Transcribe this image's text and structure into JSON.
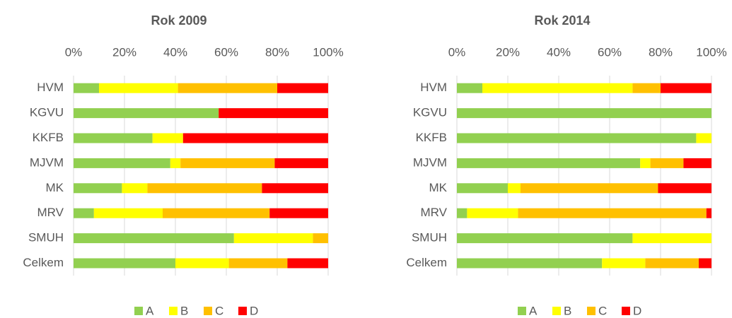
{
  "chart_data": [
    {
      "type": "bar",
      "orientation": "horizontal",
      "stacked": true,
      "title": "Rok 2009",
      "categories": [
        "HVM",
        "KGVU",
        "KKFB",
        "MJVM",
        "MK",
        "MRV",
        "SMUH",
        "Celkem"
      ],
      "series": [
        {
          "name": "A",
          "color": "#92d050",
          "values": [
            10,
            57,
            31,
            38,
            19,
            8,
            63,
            40
          ]
        },
        {
          "name": "B",
          "color": "#ffff00",
          "values": [
            31,
            0,
            12,
            4,
            10,
            27,
            31,
            21
          ]
        },
        {
          "name": "C",
          "color": "#ffc000",
          "values": [
            39,
            0,
            0,
            37,
            45,
            42,
            6,
            23
          ]
        },
        {
          "name": "D",
          "color": "#ff0000",
          "values": [
            20,
            43,
            57,
            21,
            26,
            23,
            0,
            16
          ]
        }
      ],
      "xlim": [
        0,
        100
      ],
      "xticks": [
        {
          "value": 0,
          "label": "0%"
        },
        {
          "value": 20,
          "label": "20%"
        },
        {
          "value": 40,
          "label": "40%"
        },
        {
          "value": 60,
          "label": "60%"
        },
        {
          "value": 80,
          "label": "80%"
        },
        {
          "value": 100,
          "label": "100%"
        }
      ],
      "grid": true,
      "legend": "bottom"
    },
    {
      "type": "bar",
      "orientation": "horizontal",
      "stacked": true,
      "title": "Rok 2014",
      "categories": [
        "HVM",
        "KGVU",
        "KKFB",
        "MJVM",
        "MK",
        "MRV",
        "SMUH",
        "Celkem"
      ],
      "series": [
        {
          "name": "A",
          "color": "#92d050",
          "values": [
            10,
            100,
            94,
            72,
            20,
            4,
            69,
            57
          ]
        },
        {
          "name": "B",
          "color": "#ffff00",
          "values": [
            59,
            0,
            6,
            4,
            5,
            20,
            31,
            17
          ]
        },
        {
          "name": "C",
          "color": "#ffc000",
          "values": [
            11,
            0,
            0,
            13,
            54,
            74,
            0,
            21
          ]
        },
        {
          "name": "D",
          "color": "#ff0000",
          "values": [
            20,
            0,
            0,
            11,
            21,
            2,
            0,
            5
          ]
        }
      ],
      "xlim": [
        0,
        100
      ],
      "xticks": [
        {
          "value": 0,
          "label": "0%"
        },
        {
          "value": 20,
          "label": "20%"
        },
        {
          "value": 40,
          "label": "40%"
        },
        {
          "value": 60,
          "label": "60%"
        },
        {
          "value": 80,
          "label": "80%"
        },
        {
          "value": 100,
          "label": "100%"
        }
      ],
      "grid": true,
      "legend": "bottom"
    }
  ]
}
